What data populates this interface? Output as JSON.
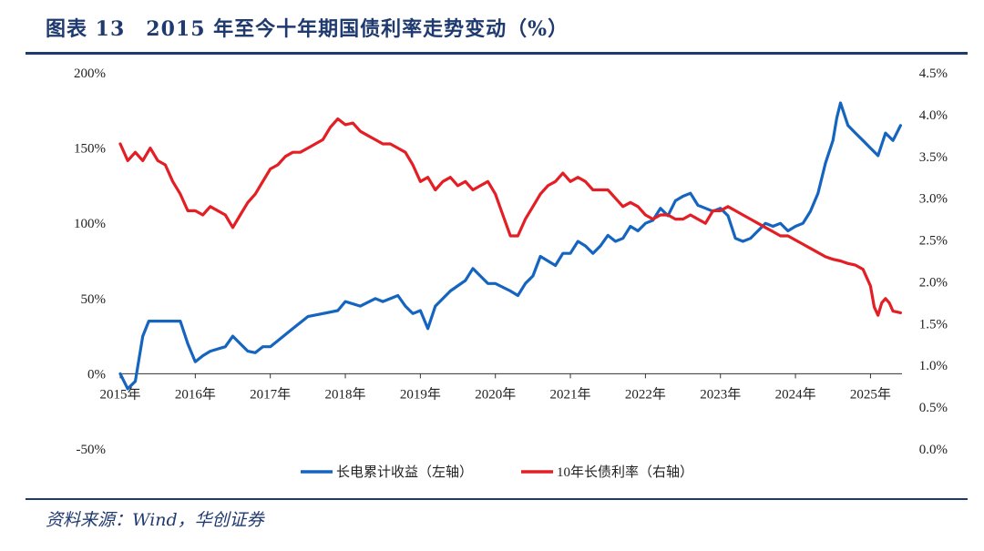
{
  "figure": {
    "title": "图表 13　2015 年至今十年期国债利率走势变动（%）",
    "source": "资料来源：Wind，华创证券"
  },
  "colors": {
    "accent": "#1f3a6e",
    "series_left": "#1565c0",
    "series_right": "#e31e24"
  },
  "chart_data": {
    "type": "line",
    "x_tick_labels": [
      "2015年",
      "2016年",
      "2017年",
      "2018年",
      "2019年",
      "2020年",
      "2021年",
      "2022年",
      "2023年",
      "2024年",
      "2025年"
    ],
    "x_range": [
      "2015-01",
      "2025-06"
    ],
    "left_axis": {
      "ticks": [
        "200%",
        "150%",
        "100%",
        "50%",
        "0%",
        "-50%"
      ],
      "ylim": [
        -50,
        200
      ],
      "unit": "%"
    },
    "right_axis": {
      "ticks": [
        "4.5%",
        "4.0%",
        "3.5%",
        "3.0%",
        "2.5%",
        "2.0%",
        "1.5%",
        "1.0%",
        "0.5%",
        "0.0%"
      ],
      "ylim": [
        0.0,
        4.5
      ],
      "unit": "%"
    },
    "legend_position": "bottom-center",
    "grid": false,
    "series": [
      {
        "name": "长电累计收益（左轴）",
        "axis": "left",
        "x": [
          2015.0,
          2015.1,
          2015.2,
          2015.3,
          2015.38,
          2015.45,
          2015.6,
          2015.8,
          2015.9,
          2016.0,
          2016.1,
          2016.2,
          2016.4,
          2016.5,
          2016.6,
          2016.7,
          2016.8,
          2016.9,
          2017.0,
          2017.1,
          2017.3,
          2017.5,
          2017.7,
          2017.9,
          2018.0,
          2018.2,
          2018.4,
          2018.5,
          2018.7,
          2018.8,
          2018.9,
          2019.0,
          2019.1,
          2019.2,
          2019.4,
          2019.6,
          2019.7,
          2019.8,
          2019.9,
          2020.0,
          2020.2,
          2020.3,
          2020.4,
          2020.5,
          2020.6,
          2020.8,
          2020.9,
          2021.0,
          2021.1,
          2021.2,
          2021.3,
          2021.4,
          2021.5,
          2021.6,
          2021.7,
          2021.8,
          2021.9,
          2022.0,
          2022.1,
          2022.2,
          2022.3,
          2022.4,
          2022.5,
          2022.6,
          2022.7,
          2022.8,
          2022.9,
          2023.0,
          2023.1,
          2023.2,
          2023.3,
          2023.4,
          2023.5,
          2023.6,
          2023.7,
          2023.8,
          2023.9,
          2024.0,
          2024.1,
          2024.2,
          2024.3,
          2024.4,
          2024.5,
          2024.55,
          2024.6,
          2024.7,
          2024.8,
          2024.9,
          2025.0,
          2025.1,
          2025.2,
          2025.3,
          2025.4
        ],
        "y": [
          0,
          -10,
          -5,
          25,
          35,
          35,
          35,
          35,
          20,
          8,
          12,
          15,
          18,
          25,
          20,
          15,
          14,
          18,
          18,
          22,
          30,
          38,
          40,
          42,
          48,
          45,
          50,
          48,
          52,
          45,
          40,
          42,
          30,
          45,
          55,
          62,
          70,
          65,
          60,
          60,
          55,
          52,
          60,
          65,
          78,
          72,
          80,
          80,
          88,
          85,
          80,
          85,
          92,
          88,
          90,
          98,
          95,
          100,
          102,
          110,
          105,
          115,
          118,
          120,
          112,
          110,
          108,
          110,
          105,
          90,
          88,
          90,
          95,
          100,
          98,
          100,
          95,
          98,
          100,
          108,
          120,
          140,
          155,
          170,
          180,
          165,
          160,
          155,
          150,
          145,
          160,
          155,
          165
        ]
      },
      {
        "name": "10年长债利率（右轴）",
        "axis": "right",
        "x": [
          2015.0,
          2015.1,
          2015.2,
          2015.3,
          2015.4,
          2015.5,
          2015.6,
          2015.7,
          2015.8,
          2015.9,
          2016.0,
          2016.1,
          2016.2,
          2016.4,
          2016.5,
          2016.6,
          2016.7,
          2016.8,
          2016.9,
          2017.0,
          2017.1,
          2017.2,
          2017.3,
          2017.4,
          2017.5,
          2017.6,
          2017.7,
          2017.8,
          2017.9,
          2018.0,
          2018.1,
          2018.2,
          2018.3,
          2018.4,
          2018.5,
          2018.6,
          2018.7,
          2018.8,
          2018.9,
          2019.0,
          2019.1,
          2019.2,
          2019.3,
          2019.4,
          2019.5,
          2019.6,
          2019.7,
          2019.8,
          2019.9,
          2020.0,
          2020.1,
          2020.2,
          2020.3,
          2020.4,
          2020.5,
          2020.6,
          2020.7,
          2020.8,
          2020.9,
          2021.0,
          2021.1,
          2021.2,
          2021.3,
          2021.4,
          2021.5,
          2021.6,
          2021.7,
          2021.8,
          2021.9,
          2022.0,
          2022.1,
          2022.2,
          2022.3,
          2022.4,
          2022.5,
          2022.6,
          2022.7,
          2022.8,
          2022.9,
          2023.0,
          2023.1,
          2023.2,
          2023.3,
          2023.4,
          2023.5,
          2023.6,
          2023.7,
          2023.8,
          2023.9,
          2024.0,
          2024.1,
          2024.2,
          2024.3,
          2024.4,
          2024.5,
          2024.6,
          2024.7,
          2024.8,
          2024.9,
          2025.0,
          2025.05,
          2025.1,
          2025.15,
          2025.2,
          2025.25,
          2025.3,
          2025.4
        ],
        "y": [
          3.65,
          3.45,
          3.55,
          3.45,
          3.6,
          3.45,
          3.4,
          3.2,
          3.05,
          2.85,
          2.85,
          2.8,
          2.9,
          2.8,
          2.65,
          2.8,
          2.95,
          3.05,
          3.2,
          3.35,
          3.4,
          3.5,
          3.55,
          3.55,
          3.6,
          3.65,
          3.7,
          3.85,
          3.95,
          3.88,
          3.9,
          3.8,
          3.75,
          3.7,
          3.65,
          3.65,
          3.6,
          3.55,
          3.4,
          3.2,
          3.25,
          3.1,
          3.2,
          3.25,
          3.15,
          3.2,
          3.1,
          3.15,
          3.2,
          3.05,
          2.8,
          2.55,
          2.55,
          2.75,
          2.9,
          3.05,
          3.15,
          3.2,
          3.3,
          3.2,
          3.25,
          3.2,
          3.1,
          3.1,
          3.1,
          3.0,
          2.9,
          2.95,
          2.9,
          2.8,
          2.75,
          2.8,
          2.8,
          2.75,
          2.75,
          2.8,
          2.75,
          2.7,
          2.85,
          2.85,
          2.9,
          2.85,
          2.8,
          2.75,
          2.7,
          2.65,
          2.6,
          2.55,
          2.55,
          2.5,
          2.45,
          2.4,
          2.35,
          2.3,
          2.27,
          2.25,
          2.22,
          2.2,
          2.15,
          1.95,
          1.7,
          1.6,
          1.75,
          1.8,
          1.75,
          1.65,
          1.63
        ]
      }
    ]
  }
}
